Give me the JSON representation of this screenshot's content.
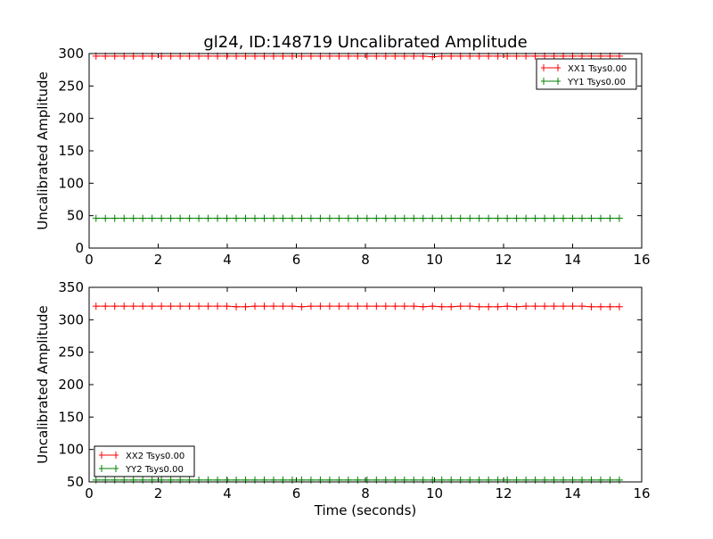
{
  "chart_data": [
    {
      "type": "line",
      "title": "gl24, ID:148719 Uncalibrated Amplitude",
      "xlabel": "",
      "ylabel": "Uncalibrated Amplitude",
      "xlim": [
        0,
        16
      ],
      "ylim": [
        0,
        300
      ],
      "xticks": [
        "0",
        "2",
        "4",
        "6",
        "8",
        "10",
        "12",
        "14",
        "16"
      ],
      "yticks": [
        "0",
        "50",
        "100",
        "150",
        "200",
        "250",
        "300"
      ],
      "legend": "top-right",
      "x_start": 0.2,
      "x_step": 0.2706,
      "series": [
        {
          "name": "XX1 Tsys0.00",
          "color": "#ff0000",
          "values": [
            296,
            296,
            296,
            296,
            296,
            296,
            296,
            296,
            296,
            296,
            296,
            296,
            296,
            296,
            296,
            296,
            296,
            296,
            296,
            296,
            296,
            296,
            296,
            296,
            296,
            296,
            296,
            296,
            296,
            296,
            296,
            296,
            296,
            296,
            296,
            296,
            295,
            296,
            296,
            296,
            296,
            296,
            296,
            296,
            296,
            296,
            296,
            296,
            296,
            296,
            296,
            296,
            296,
            296,
            296,
            296,
            296
          ]
        },
        {
          "name": "YY1 Tsys0.00",
          "color": "#008000",
          "values": [
            46,
            46,
            46,
            46,
            46,
            46,
            46,
            46,
            46,
            46,
            46,
            46,
            46,
            46,
            46,
            46,
            46,
            46,
            46,
            46,
            46,
            46,
            46,
            46,
            46,
            46,
            46,
            46,
            46,
            46,
            46,
            46,
            46,
            46,
            46,
            46,
            46,
            46,
            46,
            46,
            46,
            46,
            46,
            46,
            46,
            46,
            46,
            46,
            46,
            46,
            46,
            46,
            46,
            46,
            46,
            46,
            46
          ]
        }
      ]
    },
    {
      "type": "line",
      "title": "",
      "xlabel": "Time (seconds)",
      "ylabel": "Uncalibrated Amplitude",
      "xlim": [
        0,
        16
      ],
      "ylim": [
        50,
        350
      ],
      "xticks": [
        "0",
        "2",
        "4",
        "6",
        "8",
        "10",
        "12",
        "14",
        "16"
      ],
      "yticks": [
        "50",
        "100",
        "150",
        "200",
        "250",
        "300",
        "350"
      ],
      "legend": "bottom-left",
      "x_start": 0.2,
      "x_step": 0.2706,
      "series": [
        {
          "name": "XX2 Tsys0.00",
          "color": "#ff0000",
          "values": [
            321,
            321,
            321,
            321,
            321,
            321,
            321,
            321,
            321,
            321,
            321,
            321,
            321,
            321,
            321,
            320,
            320,
            321,
            321,
            321,
            321,
            321,
            320,
            321,
            321,
            321,
            321,
            321,
            321,
            321,
            321,
            321,
            321,
            321,
            321,
            320,
            321,
            320,
            320,
            321,
            321,
            320,
            320,
            320,
            321,
            320,
            321,
            321,
            321,
            321,
            321,
            321,
            321,
            320,
            320,
            320,
            320
          ]
        },
        {
          "name": "YY2 Tsys0.00",
          "color": "#008000",
          "values": [
            53,
            53,
            53,
            53,
            53,
            53,
            53,
            53,
            53,
            53,
            53,
            53,
            53,
            53,
            53,
            53,
            53,
            53,
            53,
            53,
            53,
            53,
            53,
            53,
            53,
            53,
            53,
            53,
            53,
            53,
            53,
            53,
            53,
            53,
            53,
            53,
            53,
            53,
            53,
            53,
            53,
            53,
            53,
            53,
            53,
            53,
            53,
            53,
            53,
            53,
            53,
            53,
            53,
            53,
            53,
            53,
            53
          ]
        }
      ]
    }
  ]
}
